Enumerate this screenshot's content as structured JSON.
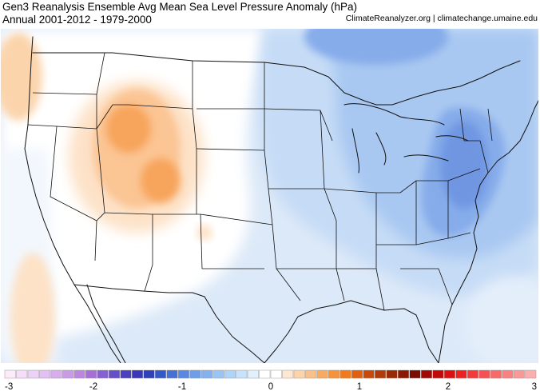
{
  "header": {
    "title": "Gen3 Reanalysis Ensemble Avg Mean Sea Level Pressure Anomaly (hPa)",
    "subtitle": "Annual 2001-2012 - 1979-2000",
    "credit": "ClimateReanalyzer.org | climatechange.umaine.edu"
  },
  "legend": {
    "ticks": [
      "-3",
      "-2",
      "-1",
      "0",
      "1",
      "2",
      "3"
    ],
    "min": -3,
    "max": 3,
    "colors": [
      "#fdeafb",
      "#f6defa",
      "#eed1f6",
      "#e2c0f1",
      "#d6aeec",
      "#c99be6",
      "#bb86de",
      "#a470d6",
      "#8460d0",
      "#6650c8",
      "#4a40c0",
      "#3a38b8",
      "#3040b8",
      "#3558c8",
      "#4770d5",
      "#5a88e0",
      "#6f9ee9",
      "#85b2ef",
      "#9ac4f4",
      "#b0d4f8",
      "#c8e2fb",
      "#e2f0fd",
      "#ffffff",
      "#ffffff",
      "#fde7d3",
      "#fbd4ac",
      "#f9c08a",
      "#f7aa62",
      "#f5923a",
      "#f07a1c",
      "#e06010",
      "#c84a0a",
      "#b03a08",
      "#9a2a05",
      "#8a1a03",
      "#7a0c02",
      "#a00808",
      "#c00a0a",
      "#dd1010",
      "#ee2020",
      "#f23a3a",
      "#f45252",
      "#f66a6a",
      "#f88282",
      "#f99898",
      "#fbaeae"
    ]
  },
  "map_colors": {
    "background": "#dce9f8",
    "ocean_west": "#e8f1fb",
    "white": "#ffffff",
    "orange_light": "#fde2c8",
    "orange_mid": "#fbc594",
    "orange_strong": "#f7a45c",
    "blue_light": "#c6dcf6",
    "blue_mid": "#a9c8f1",
    "blue_strong": "#86acea",
    "blue_deep": "#6f96e2",
    "lines": "#111111"
  }
}
